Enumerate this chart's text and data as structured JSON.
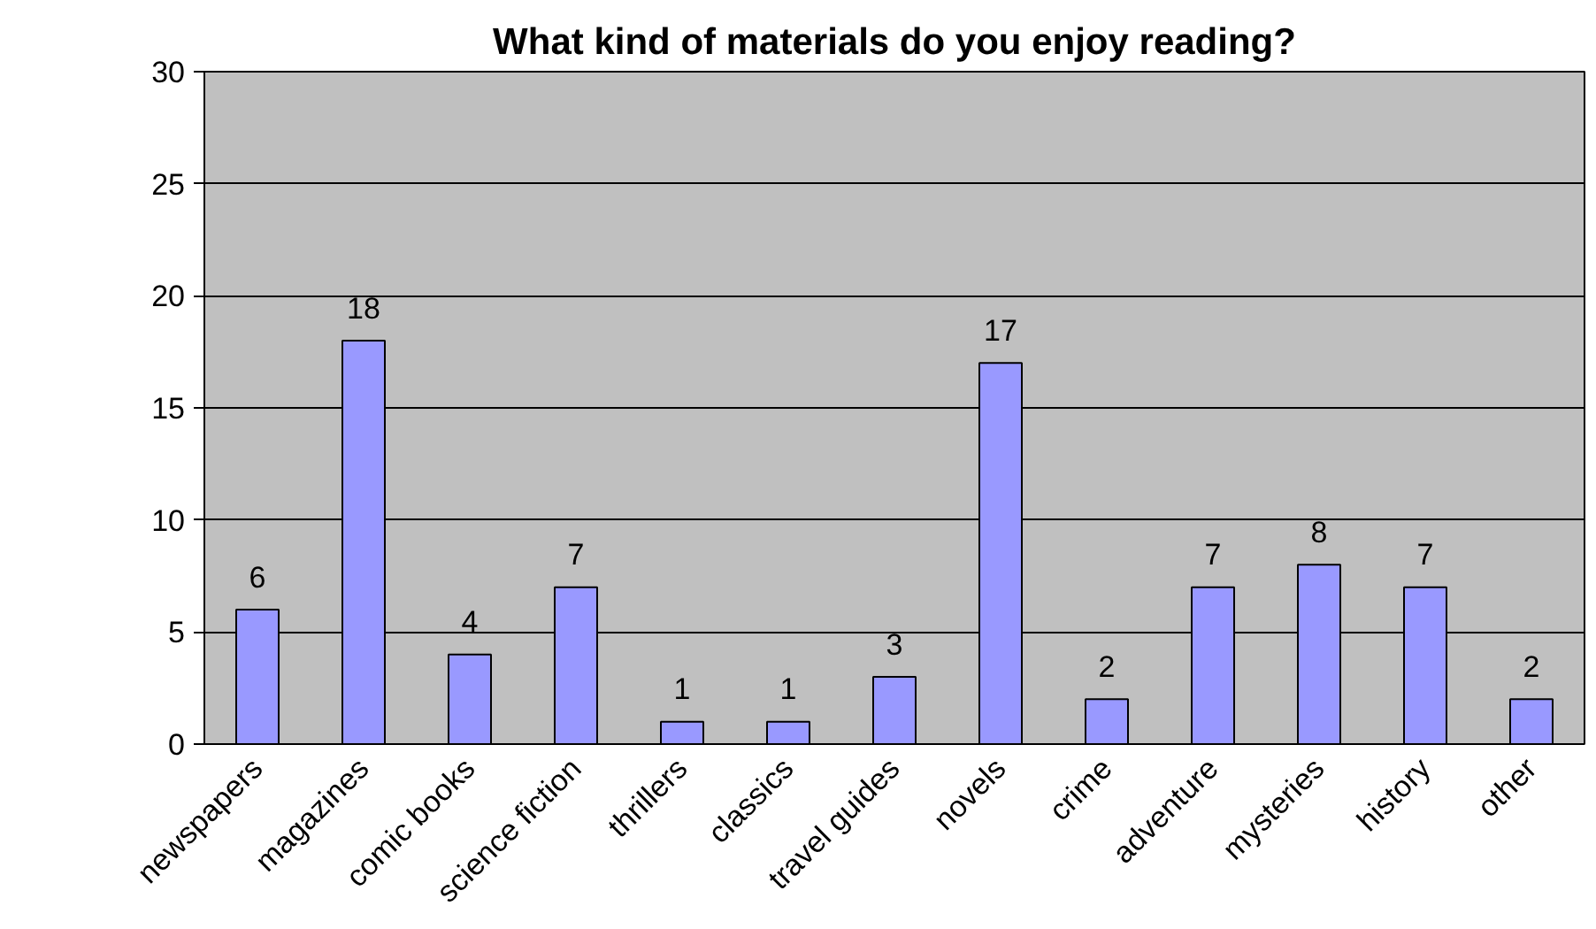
{
  "chart_data": {
    "type": "bar",
    "title": "What kind of materials do you enjoy reading?",
    "categories": [
      "newspapers",
      "magazines",
      "comic books",
      "science fiction",
      "thrillers",
      "classics",
      "travel guides",
      "novels",
      "crime",
      "adventure",
      "mysteries",
      "history",
      "other"
    ],
    "values": [
      6,
      18,
      4,
      7,
      1,
      1,
      3,
      17,
      2,
      7,
      8,
      7,
      2
    ],
    "color": "#9999ff",
    "ylim": [
      0,
      30
    ],
    "yticks": [
      0,
      5,
      10,
      15,
      20,
      25,
      30
    ],
    "grid": "y",
    "data_labels": true
  }
}
